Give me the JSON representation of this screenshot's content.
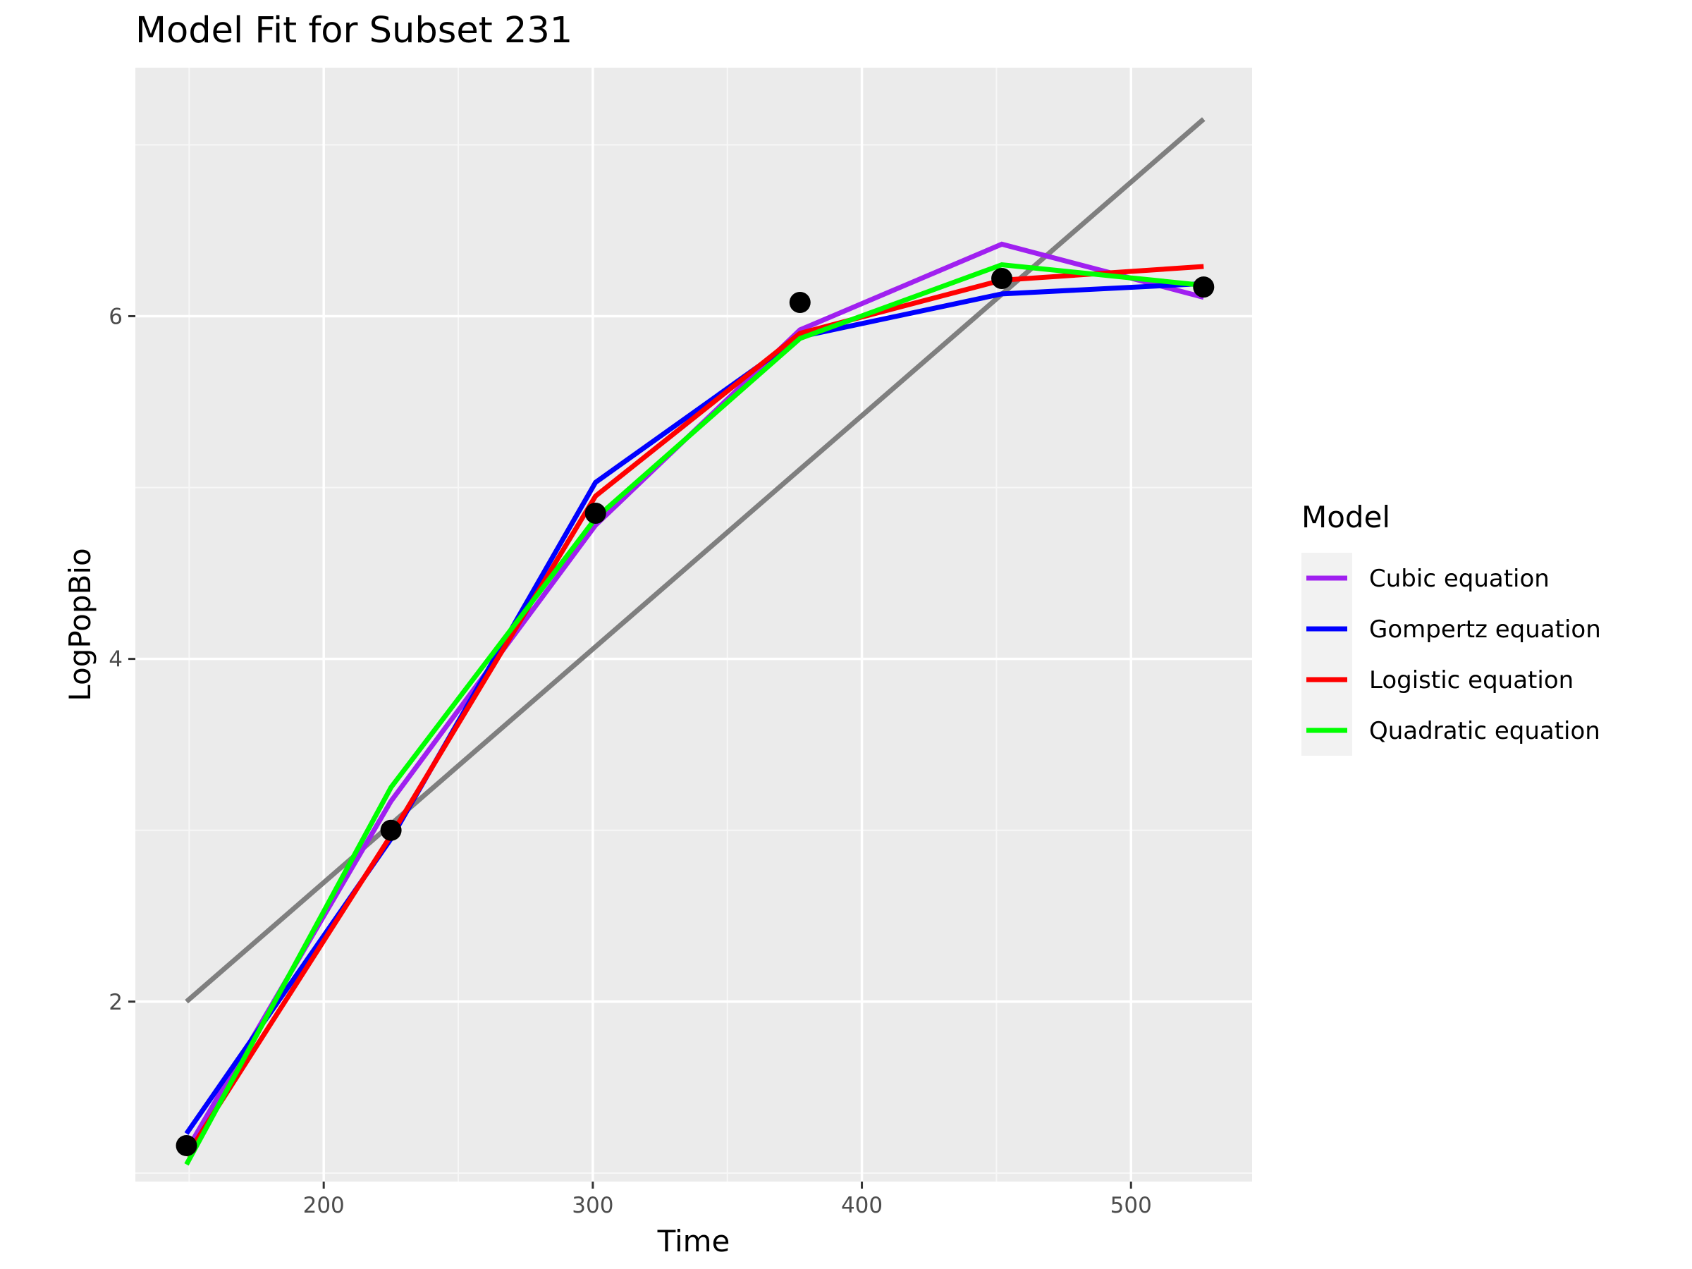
{
  "chart_data": {
    "type": "line",
    "title": "Model Fit for Subset 231",
    "xlabel": "Time",
    "ylabel": "LogPopBio",
    "xlim": [
      130,
      545
    ],
    "ylim": [
      0.95,
      7.45
    ],
    "x_ticks": [
      200,
      300,
      400,
      500
    ],
    "y_ticks": [
      2,
      4,
      6
    ],
    "x_minor": [
      150,
      250,
      350,
      450
    ],
    "y_minor": [
      1,
      3,
      5,
      7
    ],
    "grid": true,
    "background": "#ebebeb",
    "points": {
      "x": [
        149,
        225,
        301,
        377,
        452,
        527
      ],
      "y": [
        1.16,
        3.0,
        4.85,
        6.08,
        6.22,
        6.17
      ],
      "color": "#000000"
    },
    "linear_fit": {
      "x": [
        149,
        527
      ],
      "y": [
        2.0,
        7.15
      ],
      "color": "#7f7f7f"
    },
    "series": [
      {
        "name": "Cubic equation",
        "color": "#a020f0",
        "x": [
          149,
          225,
          301,
          377,
          452,
          527
        ],
        "y": [
          1.13,
          3.17,
          4.78,
          5.92,
          6.42,
          6.11
        ]
      },
      {
        "name": "Gompertz equation",
        "color": "#0000ff",
        "x": [
          149,
          225,
          301,
          377,
          452,
          527
        ],
        "y": [
          1.23,
          2.95,
          5.03,
          5.88,
          6.13,
          6.19
        ]
      },
      {
        "name": "Logistic equation",
        "color": "#ff0000",
        "x": [
          149,
          225,
          301,
          377,
          452,
          527
        ],
        "y": [
          1.1,
          2.97,
          4.95,
          5.9,
          6.21,
          6.29
        ]
      },
      {
        "name": "Quadratic equation",
        "color": "#00ff00",
        "x": [
          149,
          225,
          301,
          377,
          452,
          527
        ],
        "y": [
          1.05,
          3.25,
          4.82,
          5.87,
          6.3,
          6.18
        ]
      }
    ],
    "legend": {
      "title": "Model",
      "position": "right"
    }
  }
}
